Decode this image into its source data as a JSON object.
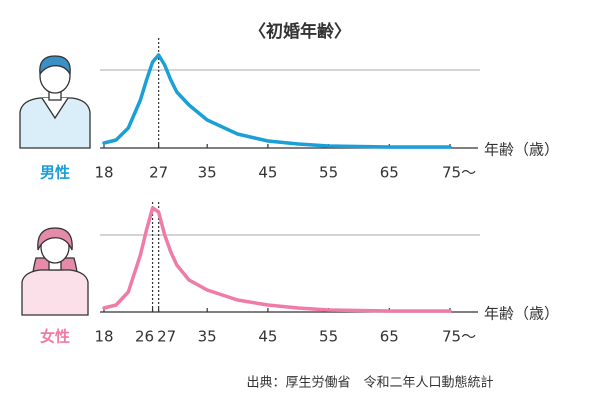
{
  "title": "〈初婚年齢〉",
  "source": "出典：厚生労働省　令和二年人口動態統計",
  "chart_data": [
    {
      "type": "line",
      "title": "男性",
      "x_label": "年齢（歳）",
      "color": "#1b9fd9",
      "x": [
        18,
        20,
        22,
        24,
        25,
        26,
        27,
        28,
        29,
        30,
        32,
        35,
        40,
        45,
        50,
        55,
        65,
        75
      ],
      "values": [
        5,
        8,
        20,
        48,
        68,
        86,
        93,
        83,
        68,
        56,
        43,
        28,
        14,
        7,
        4,
        2,
        1,
        1
      ],
      "xlim": [
        18,
        75
      ],
      "ylim": [
        0,
        110
      ],
      "xticks": [
        18,
        27,
        35,
        45,
        55,
        65,
        {
          "value": 75,
          "label": "75〜"
        }
      ]
    },
    {
      "type": "line",
      "title": "女性",
      "x_label": "年齢（歳）",
      "color": "#ef7ba6",
      "x": [
        18,
        20,
        22,
        24,
        25,
        26,
        27,
        28,
        29,
        30,
        32,
        35,
        40,
        45,
        50,
        55,
        65,
        75
      ],
      "values": [
        4,
        7,
        20,
        57,
        82,
        104,
        100,
        77,
        60,
        47,
        32,
        22,
        12,
        7,
        4,
        2,
        1,
        1
      ],
      "xlim": [
        18,
        75
      ],
      "ylim": [
        0,
        110
      ],
      "xticks": [
        18,
        26,
        27,
        35,
        45,
        55,
        65,
        {
          "value": 75,
          "label": "75〜"
        }
      ]
    }
  ]
}
